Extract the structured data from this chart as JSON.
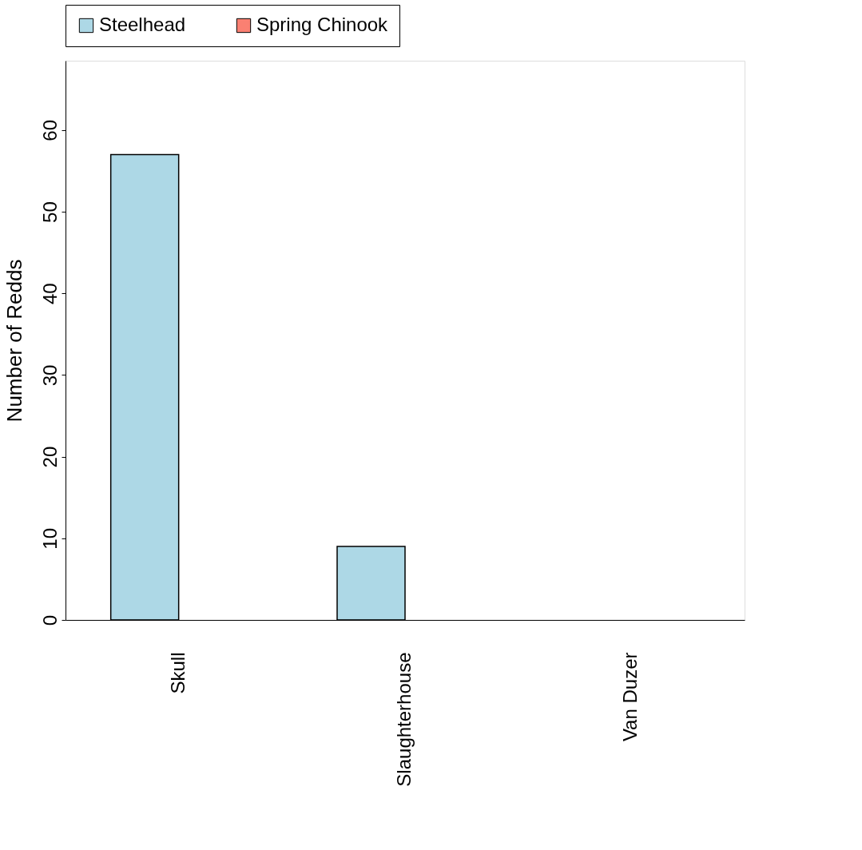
{
  "chart_data": {
    "type": "bar",
    "ylabel": "Number of Redds",
    "categories": [
      "Skull",
      "Slaughterhouse",
      "Van Duzer"
    ],
    "series": [
      {
        "name": "Steelhead",
        "color": "#add8e6",
        "values": [
          57,
          9,
          0
        ]
      },
      {
        "name": "Spring Chinook",
        "color": "#fa8072",
        "values": [
          0,
          0,
          0
        ]
      }
    ],
    "ylim": [
      0,
      68.5
    ],
    "yticks": [
      0,
      10,
      20,
      30,
      40,
      50,
      60
    ],
    "grid": false,
    "legend": "top"
  }
}
